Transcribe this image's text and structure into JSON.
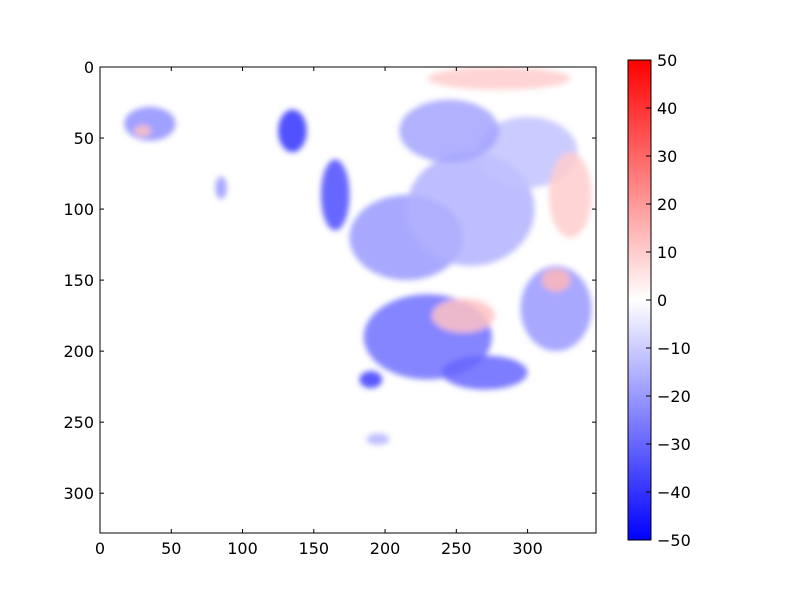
{
  "chart_data": {
    "type": "heatmap",
    "title": "",
    "xlabel": "",
    "ylabel": "",
    "xlim": [
      0,
      348
    ],
    "ylim": [
      328,
      0
    ],
    "x_ticks": [
      0,
      50,
      100,
      150,
      200,
      250,
      300
    ],
    "y_ticks": [
      0,
      50,
      100,
      150,
      200,
      250,
      300
    ],
    "grid": false,
    "colormap": "bwr",
    "colors": {
      "low": "#0000ff",
      "mid": "#ffffff",
      "high": "#ff0000"
    },
    "colorbar": {
      "vmin": -50,
      "vmax": 50,
      "ticks": [
        50,
        40,
        30,
        20,
        10,
        0,
        -10,
        -20,
        -30,
        -40,
        -50
      ]
    },
    "regions": [
      {
        "x": 35,
        "y": 40,
        "rx": 18,
        "ry": 12,
        "value": -22
      },
      {
        "x": 30,
        "y": 45,
        "rx": 6,
        "ry": 4,
        "value": 12
      },
      {
        "x": 135,
        "y": 45,
        "rx": 10,
        "ry": 15,
        "value": -40
      },
      {
        "x": 165,
        "y": 90,
        "rx": 10,
        "ry": 25,
        "value": -35
      },
      {
        "x": 215,
        "y": 120,
        "rx": 40,
        "ry": 30,
        "value": -20
      },
      {
        "x": 260,
        "y": 100,
        "rx": 45,
        "ry": 40,
        "value": -15
      },
      {
        "x": 300,
        "y": 60,
        "rx": 35,
        "ry": 25,
        "value": -12
      },
      {
        "x": 230,
        "y": 190,
        "rx": 45,
        "ry": 30,
        "value": -28
      },
      {
        "x": 255,
        "y": 175,
        "rx": 22,
        "ry": 12,
        "value": 12
      },
      {
        "x": 320,
        "y": 170,
        "rx": 25,
        "ry": 30,
        "value": -20
      },
      {
        "x": 320,
        "y": 150,
        "rx": 10,
        "ry": 8,
        "value": 14
      },
      {
        "x": 190,
        "y": 220,
        "rx": 8,
        "ry": 6,
        "value": -38
      },
      {
        "x": 270,
        "y": 215,
        "rx": 30,
        "ry": 12,
        "value": -30
      },
      {
        "x": 330,
        "y": 90,
        "rx": 15,
        "ry": 30,
        "value": 10
      },
      {
        "x": 280,
        "y": 8,
        "rx": 50,
        "ry": 8,
        "value": 10
      },
      {
        "x": 245,
        "y": 45,
        "rx": 35,
        "ry": 22,
        "value": -18
      },
      {
        "x": 85,
        "y": 85,
        "rx": 4,
        "ry": 8,
        "value": -20
      },
      {
        "x": 195,
        "y": 262,
        "rx": 8,
        "ry": 4,
        "value": -15
      }
    ]
  }
}
